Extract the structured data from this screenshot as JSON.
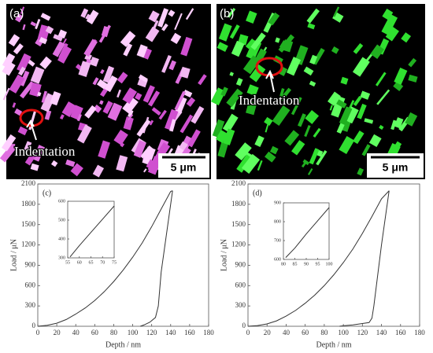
{
  "micrographs": [
    {
      "label": "(a)",
      "annotation": "Indentation",
      "scale_bar": "5 μm"
    },
    {
      "label": "(b)",
      "annotation": "Indentation",
      "scale_bar": "5 μm"
    }
  ],
  "chart_data": [
    {
      "type": "line",
      "panel_label": "(c)",
      "xlabel": "Depth / nm",
      "ylabel": "Load / μN",
      "xlim": [
        0,
        180
      ],
      "xticks": [
        0,
        20,
        40,
        60,
        80,
        100,
        120,
        140,
        160,
        180
      ],
      "ylim": [
        0,
        2100
      ],
      "yticks": [
        0,
        300,
        600,
        900,
        1200,
        1500,
        1800,
        2100
      ],
      "series": [
        {
          "color": "#333333",
          "x": [
            0,
            10,
            20,
            30,
            40,
            50,
            60,
            70,
            80,
            90,
            100,
            110,
            120,
            130,
            140,
            142
          ],
          "values": [
            0,
            15,
            45,
            100,
            180,
            270,
            380,
            510,
            660,
            830,
            1020,
            1230,
            1470,
            1730,
            1990,
            2000
          ]
        },
        {
          "color": "#333333",
          "x": [
            142,
            138,
            134,
            130,
            127,
            124,
            118,
            112,
            108
          ],
          "values": [
            2000,
            1600,
            1200,
            800,
            300,
            130,
            60,
            20,
            0
          ]
        }
      ],
      "inset": {
        "type": "line",
        "xlim": [
          55,
          75
        ],
        "xticks": [
          55,
          60,
          65,
          70,
          75
        ],
        "ylim": [
          300,
          600
        ],
        "yticks": [
          300,
          400,
          500,
          600
        ],
        "series": [
          {
            "color": "#333333",
            "x": [
              56,
              60,
              65,
              70,
              75
            ],
            "values": [
              305,
              365,
              435,
              505,
              575
            ]
          }
        ]
      }
    },
    {
      "type": "line",
      "panel_label": "(d)",
      "xlabel": "Depth / nm",
      "ylabel": "Load / μN",
      "xlim": [
        0,
        180
      ],
      "xticks": [
        0,
        20,
        40,
        60,
        80,
        100,
        120,
        140,
        160,
        180
      ],
      "ylim": [
        0,
        2100
      ],
      "yticks": [
        0,
        300,
        600,
        900,
        1200,
        1500,
        1800,
        2100
      ],
      "series": [
        {
          "color": "#333333",
          "x": [
            0,
            10,
            20,
            30,
            40,
            50,
            60,
            70,
            80,
            90,
            100,
            110,
            120,
            130,
            140,
            148
          ],
          "values": [
            0,
            10,
            35,
            80,
            150,
            235,
            340,
            460,
            600,
            760,
            940,
            1140,
            1370,
            1620,
            1880,
            2000
          ]
        },
        {
          "color": "#333333",
          "x": [
            148,
            144,
            140,
            136,
            132,
            130,
            127,
            120,
            110,
            100,
            96
          ],
          "values": [
            2000,
            1600,
            1200,
            750,
            300,
            120,
            55,
            40,
            20,
            8,
            0
          ]
        }
      ],
      "inset": {
        "type": "line",
        "xlim": [
          80,
          100
        ],
        "xticks": [
          80,
          85,
          90,
          95,
          100
        ],
        "ylim": [
          600,
          900
        ],
        "yticks": [
          600,
          700,
          800,
          900
        ],
        "series": [
          {
            "color": "#333333",
            "x": [
              81,
              85,
              90,
              95,
              100
            ],
            "values": [
              610,
              660,
              735,
              805,
              875
            ]
          }
        ]
      }
    }
  ]
}
